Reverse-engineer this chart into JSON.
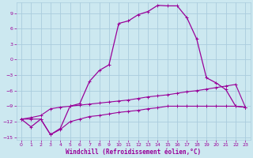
{
  "background_color": "#cce8f0",
  "grid_color": "#aaccdd",
  "line_color": "#990099",
  "xlim": [
    -0.5,
    23.5
  ],
  "ylim": [
    -15.5,
    11
  ],
  "xticks": [
    0,
    1,
    2,
    3,
    4,
    5,
    6,
    7,
    8,
    9,
    10,
    11,
    12,
    13,
    14,
    15,
    16,
    17,
    18,
    19,
    20,
    21,
    22,
    23
  ],
  "yticks": [
    -15,
    -12,
    -9,
    -6,
    -3,
    0,
    3,
    6,
    9
  ],
  "xlabel": "Windchill (Refroidissement éolien,°C)",
  "line1_x": [
    0,
    1,
    2,
    3,
    4,
    5,
    6,
    7,
    8,
    9,
    10,
    11,
    12,
    13,
    14,
    15,
    16,
    17,
    18,
    19,
    20,
    21,
    22,
    23
  ],
  "line1_y": [
    -11.5,
    -13.0,
    -11.5,
    -14.5,
    -13.3,
    -9.0,
    -8.5,
    -4.2,
    -2.1,
    -1.0,
    7.0,
    7.5,
    8.7,
    9.3,
    10.5,
    10.4,
    10.4,
    8.1,
    4.0,
    -3.5,
    -4.5,
    -5.8,
    -9.0,
    -9.2
  ],
  "line2_x": [
    0,
    1,
    2,
    3,
    4,
    5,
    6,
    7,
    8,
    9,
    10,
    11,
    12,
    13,
    14,
    15,
    16,
    17,
    18,
    19,
    20,
    21,
    22,
    23
  ],
  "line2_y": [
    -11.5,
    -11.2,
    -10.8,
    -9.5,
    -9.2,
    -9.0,
    -8.8,
    -8.6,
    -8.4,
    -8.2,
    -8.0,
    -7.8,
    -7.5,
    -7.2,
    -7.0,
    -6.8,
    -6.5,
    -6.2,
    -6.0,
    -5.7,
    -5.4,
    -5.1,
    -4.8,
    -9.2
  ],
  "line3_x": [
    0,
    1,
    2,
    3,
    4,
    5,
    6,
    7,
    8,
    9,
    10,
    11,
    12,
    13,
    14,
    15,
    16,
    17,
    18,
    19,
    20,
    21,
    22,
    23
  ],
  "line3_y": [
    -11.5,
    -11.5,
    -11.5,
    -14.5,
    -13.5,
    -12.0,
    -11.5,
    -11.0,
    -10.8,
    -10.5,
    -10.2,
    -10.0,
    -9.8,
    -9.5,
    -9.3,
    -9.0,
    -9.0,
    -9.0,
    -9.0,
    -9.0,
    -9.0,
    -9.0,
    -9.0,
    -9.2
  ]
}
